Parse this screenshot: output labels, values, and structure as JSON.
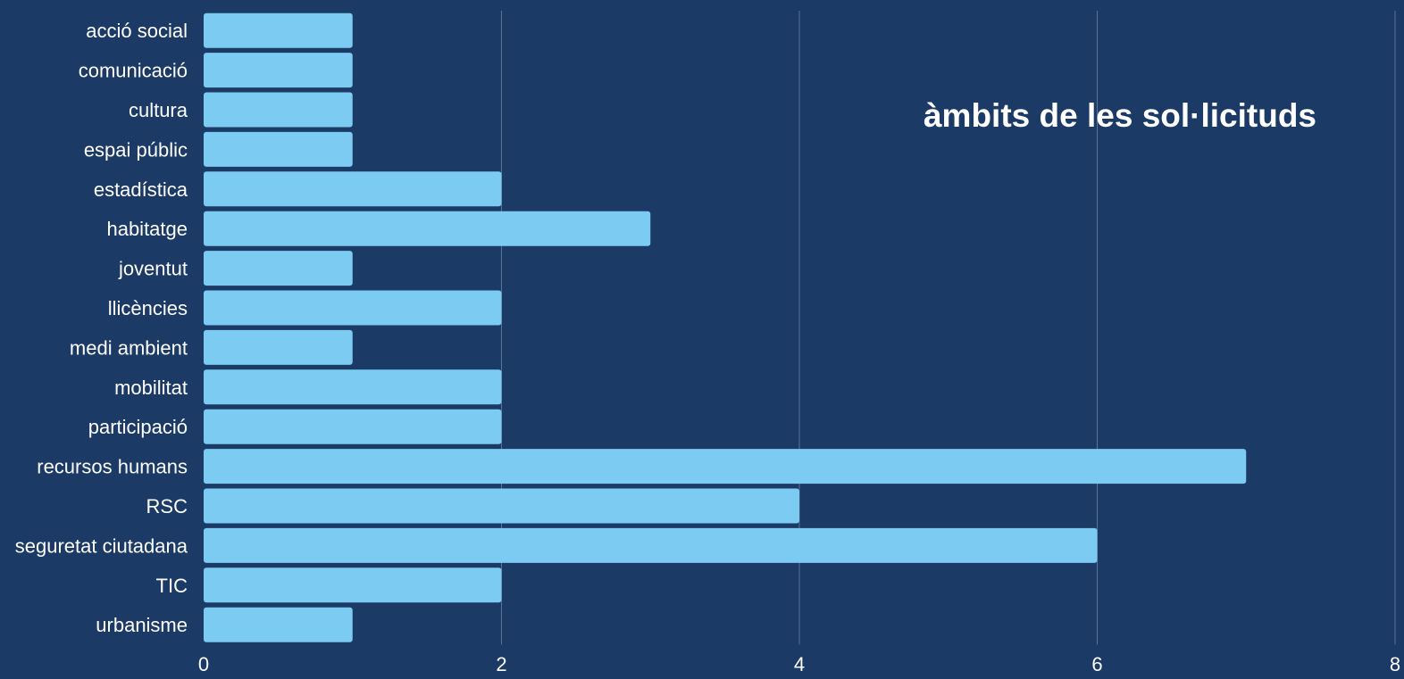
{
  "chart_data": {
    "type": "bar",
    "orientation": "horizontal",
    "title": "àmbits de les sol·licituds",
    "categories": [
      "acció social",
      "comunicació",
      "cultura",
      "espai públic",
      "estadística",
      "habitatge",
      "joventut",
      "llicències",
      "medi ambient",
      "mobilitat",
      "participació",
      "recursos humans",
      "RSC",
      "seguretat ciutadana",
      "TIC",
      "urbanisme"
    ],
    "values": [
      1,
      1,
      1,
      1,
      2,
      3,
      1,
      2,
      1,
      2,
      2,
      7,
      4,
      6,
      2,
      1
    ],
    "xlim": [
      0,
      8
    ],
    "xticks": [
      0,
      2,
      4,
      6,
      8
    ],
    "xlabel": "",
    "ylabel": "",
    "grid": "vertical",
    "legend": "none",
    "colors": {
      "background": "#1c3a66",
      "bar": "#7ccbf2",
      "grid": "#5a7397",
      "text": "#ffffff"
    }
  }
}
